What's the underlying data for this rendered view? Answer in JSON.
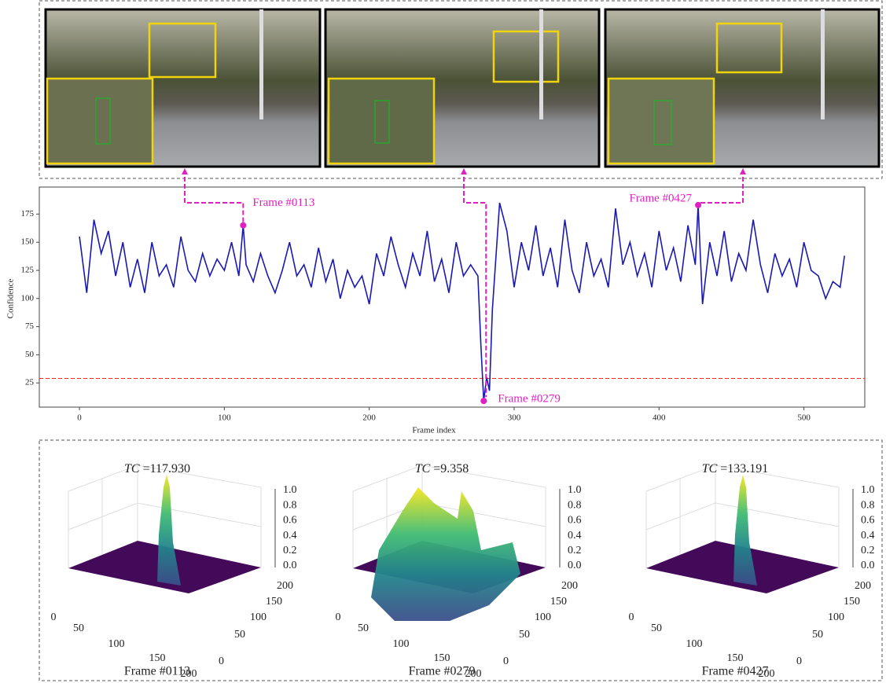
{
  "chart_data": {
    "type": "line",
    "x_label": "Frame index",
    "y_label": "Confidence",
    "xlim": [
      -27.7,
      542
    ],
    "ylim": [
      3.5,
      199
    ],
    "xticks": [
      0,
      100,
      200,
      300,
      400,
      500
    ],
    "yticks": [
      25,
      50,
      75,
      100,
      125,
      150,
      175
    ],
    "threshold": 29,
    "threshold_color": "#e03030",
    "series": [
      {
        "color": "#1a1ab0",
        "x": [
          0,
          5,
          10,
          15,
          20,
          25,
          30,
          35,
          40,
          45,
          50,
          55,
          60,
          65,
          70,
          75,
          80,
          85,
          90,
          95,
          100,
          105,
          110,
          113,
          115,
          120,
          125,
          130,
          135,
          140,
          145,
          150,
          155,
          160,
          165,
          170,
          175,
          180,
          185,
          190,
          195,
          200,
          205,
          210,
          215,
          220,
          225,
          230,
          235,
          240,
          245,
          250,
          255,
          260,
          265,
          270,
          275,
          277,
          279,
          281,
          283,
          285,
          290,
          295,
          300,
          305,
          310,
          315,
          320,
          325,
          330,
          335,
          340,
          345,
          350,
          355,
          360,
          365,
          370,
          375,
          380,
          385,
          390,
          395,
          400,
          405,
          410,
          415,
          420,
          425,
          427,
          430,
          435,
          440,
          445,
          450,
          455,
          460,
          465,
          470,
          475,
          480,
          485,
          490,
          495,
          500,
          505,
          510,
          515,
          520,
          525,
          528
        ],
        "values": [
          155,
          105,
          170,
          140,
          160,
          120,
          150,
          110,
          135,
          105,
          150,
          120,
          130,
          110,
          155,
          125,
          115,
          140,
          120,
          135,
          125,
          150,
          120,
          165,
          130,
          115,
          140,
          120,
          105,
          125,
          150,
          120,
          130,
          110,
          145,
          115,
          135,
          100,
          125,
          110,
          120,
          95,
          140,
          120,
          155,
          130,
          110,
          140,
          120,
          160,
          115,
          135,
          105,
          150,
          120,
          130,
          120,
          60,
          9,
          30,
          18,
          90,
          185,
          160,
          110,
          150,
          125,
          165,
          120,
          145,
          110,
          170,
          125,
          105,
          150,
          120,
          135,
          110,
          180,
          130,
          150,
          120,
          140,
          110,
          160,
          125,
          145,
          115,
          165,
          130,
          183,
          95,
          150,
          120,
          160,
          115,
          140,
          125,
          170,
          130,
          105,
          140,
          120,
          135,
          110,
          150,
          125,
          120,
          100,
          115,
          110,
          138
        ]
      }
    ],
    "annotations": [
      {
        "label": "Frame #0113",
        "x": 113,
        "y": 165
      },
      {
        "label": "Frame #0279",
        "x": 279,
        "y": 9
      },
      {
        "label": "Frame #0427",
        "x": 427,
        "y": 183
      }
    ],
    "annotation_color": "#e020c0"
  },
  "surface_plots": [
    {
      "tc_symbol": "TC",
      "tc_text": "=117.930",
      "frame": "Frame #0113"
    },
    {
      "tc_symbol": "TC",
      "tc_text": "=9.358",
      "frame": "Frame #0279"
    },
    {
      "tc_symbol": "TC",
      "tc_text": "=133.191",
      "frame": "Frame #0427"
    }
  ],
  "surface_axes": {
    "zticks": [
      "0.0",
      "0.2",
      "0.4",
      "0.6",
      "0.8",
      "1.0"
    ],
    "xticks": [
      0,
      50,
      100,
      150,
      200
    ],
    "yticks": [
      0,
      50,
      100,
      150,
      200
    ]
  }
}
